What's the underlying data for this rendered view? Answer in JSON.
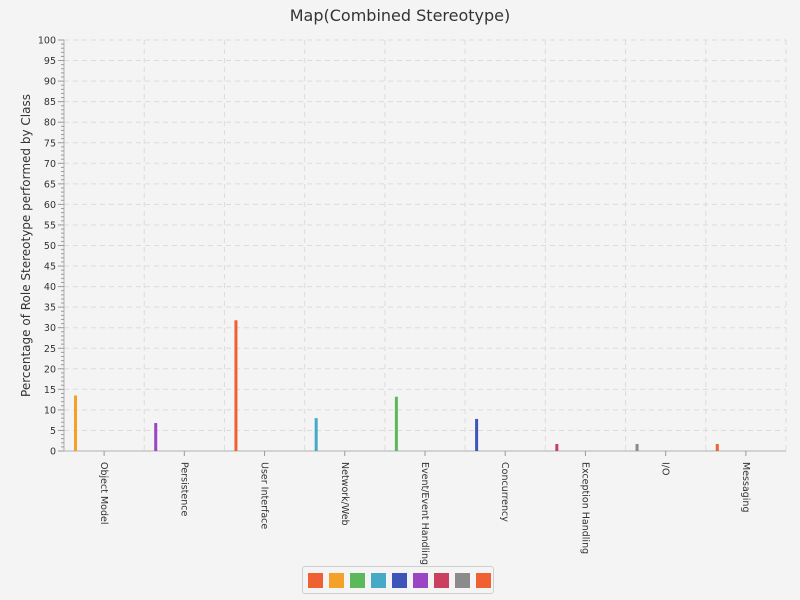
{
  "chart_data": {
    "type": "bar",
    "title": "Map(Combined Stereotype)",
    "xlabel": "",
    "ylabel": "Percentage of Role Stereotype performed by Class",
    "ylim": [
      0,
      100
    ],
    "y_tick_step": 5,
    "grid": true,
    "legend_placement": "bottom-center",
    "categories": [
      "Object Model",
      "Persistence",
      "User Interface",
      "Network/Web",
      "Event/Event Handling",
      "Concurrency",
      "Exception Handling",
      "I/O",
      "Messaging"
    ],
    "values": [
      13.5,
      6.8,
      31.8,
      8.0,
      13.2,
      7.8,
      1.7,
      1.7,
      1.7
    ],
    "colors": [
      "#f3a128",
      "#9a45c2",
      "#ef6133",
      "#45a9c7",
      "#5bb85b",
      "#3f54b8",
      "#c9415f",
      "#8b8b8b",
      "#ef6133"
    ],
    "legend_colors": [
      "#ef6133",
      "#f3a128",
      "#5bb85b",
      "#45a9c7",
      "#3f54b8",
      "#9a45c2",
      "#c9415f",
      "#8b8b8b",
      "#ef6133"
    ]
  }
}
